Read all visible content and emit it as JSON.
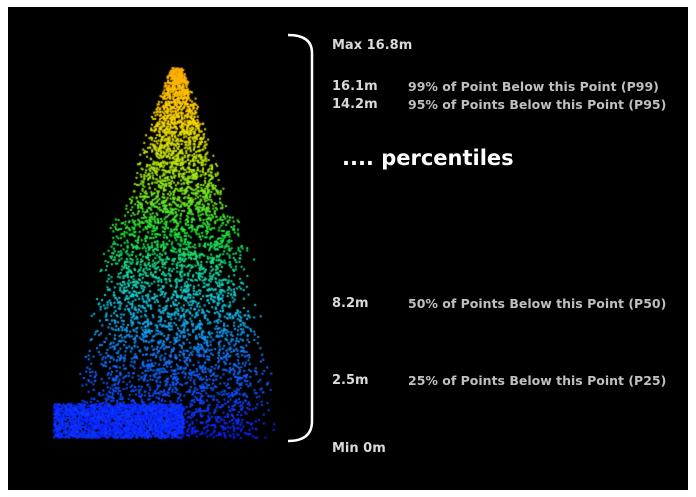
{
  "labels": {
    "max": "Max 16.8m",
    "min": "Min 0m",
    "headline": ".... percentiles"
  },
  "rows": [
    {
      "height": "16.1m",
      "description": "99% of Point Below this Point (P99)"
    },
    {
      "height": "14.2m",
      "description": "95% of Points Below this Point (P95)"
    },
    {
      "height": "8.2m",
      "description": "50% of Points Below this Point (P50)"
    },
    {
      "height": "2.5m",
      "description": "25% of Points Below this Point (P25)"
    }
  ],
  "colors": {
    "background": "#000000",
    "text": "#d9d9d9",
    "bracket": "#ffffff",
    "gradient_low": "#0a1eff",
    "gradient_mid": "#1ee61e",
    "gradient_high": "#ffb400"
  }
}
